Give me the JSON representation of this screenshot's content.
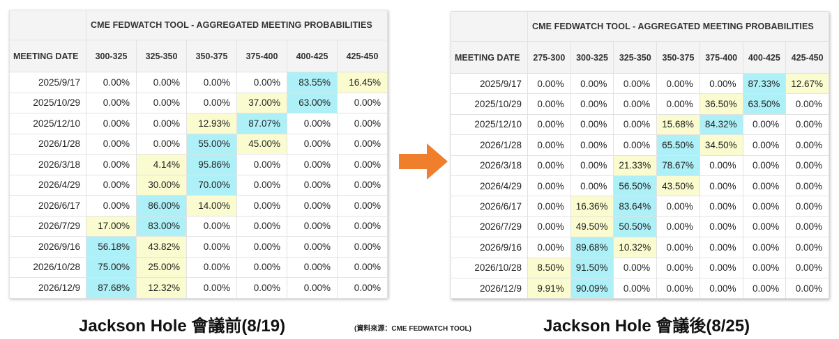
{
  "chart_data": [
    {
      "type": "table",
      "title": "CME FEDWATCH TOOL - AGGREGATED MEETING PROBABILITIES",
      "date_header": "MEETING DATE",
      "columns": [
        "300-325",
        "325-350",
        "350-375",
        "375-400",
        "400-425",
        "425-450"
      ],
      "rows": [
        {
          "date": "2025/9/17",
          "values": [
            "0.00%",
            "0.00%",
            "0.00%",
            "0.00%",
            "83.55%",
            "16.45%"
          ],
          "tone": [
            "",
            "",
            "",
            "",
            "hi",
            "mid"
          ]
        },
        {
          "date": "2025/10/29",
          "values": [
            "0.00%",
            "0.00%",
            "0.00%",
            "37.00%",
            "63.00%",
            "0.00%"
          ],
          "tone": [
            "",
            "",
            "",
            "mid",
            "hi",
            ""
          ]
        },
        {
          "date": "2025/12/10",
          "values": [
            "0.00%",
            "0.00%",
            "12.93%",
            "87.07%",
            "0.00%",
            "0.00%"
          ],
          "tone": [
            "",
            "",
            "mid",
            "hi",
            "",
            ""
          ]
        },
        {
          "date": "2026/1/28",
          "values": [
            "0.00%",
            "0.00%",
            "55.00%",
            "45.00%",
            "0.00%",
            "0.00%"
          ],
          "tone": [
            "",
            "",
            "hi",
            "mid",
            "",
            ""
          ]
        },
        {
          "date": "2026/3/18",
          "values": [
            "0.00%",
            "4.14%",
            "95.86%",
            "0.00%",
            "0.00%",
            "0.00%"
          ],
          "tone": [
            "",
            "mid",
            "hi",
            "",
            "",
            ""
          ]
        },
        {
          "date": "2026/4/29",
          "values": [
            "0.00%",
            "30.00%",
            "70.00%",
            "0.00%",
            "0.00%",
            "0.00%"
          ],
          "tone": [
            "",
            "mid",
            "hi",
            "",
            "",
            ""
          ]
        },
        {
          "date": "2026/6/17",
          "values": [
            "0.00%",
            "86.00%",
            "14.00%",
            "0.00%",
            "0.00%",
            "0.00%"
          ],
          "tone": [
            "",
            "hi",
            "mid",
            "",
            "",
            ""
          ]
        },
        {
          "date": "2026/7/29",
          "values": [
            "17.00%",
            "83.00%",
            "0.00%",
            "0.00%",
            "0.00%",
            "0.00%"
          ],
          "tone": [
            "mid",
            "hi",
            "",
            "",
            "",
            ""
          ]
        },
        {
          "date": "2026/9/16",
          "values": [
            "56.18%",
            "43.82%",
            "0.00%",
            "0.00%",
            "0.00%",
            "0.00%"
          ],
          "tone": [
            "hi",
            "mid",
            "",
            "",
            "",
            ""
          ]
        },
        {
          "date": "2026/10/28",
          "values": [
            "75.00%",
            "25.00%",
            "0.00%",
            "0.00%",
            "0.00%",
            "0.00%"
          ],
          "tone": [
            "hi",
            "mid",
            "",
            "",
            "",
            ""
          ]
        },
        {
          "date": "2026/12/9",
          "values": [
            "87.68%",
            "12.32%",
            "0.00%",
            "0.00%",
            "0.00%",
            "0.00%"
          ],
          "tone": [
            "hi",
            "mid",
            "",
            "",
            "",
            ""
          ]
        }
      ]
    },
    {
      "type": "table",
      "title": "CME FEDWATCH TOOL - AGGREGATED MEETING PROBABILITIES",
      "date_header": "MEETING DATE",
      "columns": [
        "275-300",
        "300-325",
        "325-350",
        "350-375",
        "375-400",
        "400-425",
        "425-450"
      ],
      "rows": [
        {
          "date": "2025/9/17",
          "values": [
            "0.00%",
            "0.00%",
            "0.00%",
            "0.00%",
            "0.00%",
            "87.33%",
            "12.67%"
          ],
          "tone": [
            "",
            "",
            "",
            "",
            "",
            "hi",
            "mid"
          ]
        },
        {
          "date": "2025/10/29",
          "values": [
            "0.00%",
            "0.00%",
            "0.00%",
            "0.00%",
            "36.50%",
            "63.50%",
            "0.00%"
          ],
          "tone": [
            "",
            "",
            "",
            "",
            "mid",
            "hi",
            ""
          ]
        },
        {
          "date": "2025/12/10",
          "values": [
            "0.00%",
            "0.00%",
            "0.00%",
            "15.68%",
            "84.32%",
            "0.00%",
            "0.00%"
          ],
          "tone": [
            "",
            "",
            "",
            "mid",
            "hi",
            "",
            ""
          ]
        },
        {
          "date": "2026/1/28",
          "values": [
            "0.00%",
            "0.00%",
            "0.00%",
            "65.50%",
            "34.50%",
            "0.00%",
            "0.00%"
          ],
          "tone": [
            "",
            "",
            "",
            "hi",
            "mid",
            "",
            ""
          ]
        },
        {
          "date": "2026/3/18",
          "values": [
            "0.00%",
            "0.00%",
            "21.33%",
            "78.67%",
            "0.00%",
            "0.00%",
            "0.00%"
          ],
          "tone": [
            "",
            "",
            "mid",
            "hi",
            "",
            "",
            ""
          ]
        },
        {
          "date": "2026/4/29",
          "values": [
            "0.00%",
            "0.00%",
            "56.50%",
            "43.50%",
            "0.00%",
            "0.00%",
            "0.00%"
          ],
          "tone": [
            "",
            "",
            "hi",
            "mid",
            "",
            "",
            ""
          ]
        },
        {
          "date": "2026/6/17",
          "values": [
            "0.00%",
            "16.36%",
            "83.64%",
            "0.00%",
            "0.00%",
            "0.00%",
            "0.00%"
          ],
          "tone": [
            "",
            "mid",
            "hi",
            "",
            "",
            "",
            ""
          ]
        },
        {
          "date": "2026/7/29",
          "values": [
            "0.00%",
            "49.50%",
            "50.50%",
            "0.00%",
            "0.00%",
            "0.00%",
            "0.00%"
          ],
          "tone": [
            "",
            "mid",
            "hi",
            "",
            "",
            "",
            ""
          ]
        },
        {
          "date": "2026/9/16",
          "values": [
            "0.00%",
            "89.68%",
            "10.32%",
            "0.00%",
            "0.00%",
            "0.00%",
            "0.00%"
          ],
          "tone": [
            "",
            "hi",
            "mid",
            "",
            "",
            "",
            ""
          ]
        },
        {
          "date": "2026/10/28",
          "values": [
            "8.50%",
            "91.50%",
            "0.00%",
            "0.00%",
            "0.00%",
            "0.00%",
            "0.00%"
          ],
          "tone": [
            "mid",
            "hi",
            "",
            "",
            "",
            "",
            ""
          ]
        },
        {
          "date": "2026/12/9",
          "values": [
            "9.91%",
            "90.09%",
            "0.00%",
            "0.00%",
            "0.00%",
            "0.00%",
            "0.00%"
          ],
          "tone": [
            "mid",
            "hi",
            "",
            "",
            "",
            "",
            ""
          ]
        }
      ]
    }
  ],
  "captions": {
    "before": "Jackson Hole 會議前(8/19)",
    "after": "Jackson Hole 會議後(8/25)",
    "source": "(資料來源：CME FEDWATCH TOOL)"
  },
  "colors": {
    "highest": "#aef0f7",
    "second": "#fafbcf",
    "arrow": "#ef7f2d"
  },
  "icons": {
    "arrow": "right-arrow-icon"
  }
}
